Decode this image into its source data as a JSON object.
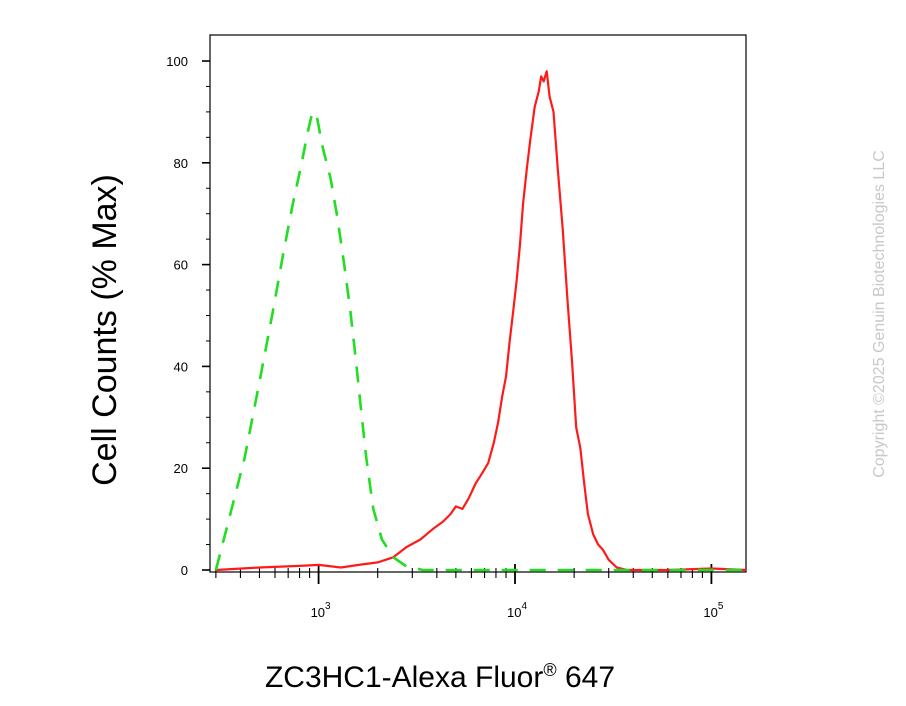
{
  "chart_data": {
    "type": "line",
    "xlabel": "ZC3HC1-Alexa Fluor",
    "xlabel_superscript": "®",
    "xlabel_suffix": " 647",
    "ylabel": "Cell Counts (% Max)",
    "x_scale": "log",
    "xlim": [
      280,
      150000
    ],
    "ylim": [
      -1,
      105
    ],
    "y_ticks": [
      "0",
      "20",
      "40",
      "60",
      "80",
      "100"
    ],
    "y_tick_values": [
      0,
      20,
      40,
      60,
      80,
      100
    ],
    "x_ticks": [
      {
        "base": "10",
        "exp": "3",
        "value": 1000
      },
      {
        "base": "10",
        "exp": "4",
        "value": 10000
      },
      {
        "base": "10",
        "exp": "5",
        "value": 100000
      }
    ],
    "series": [
      {
        "color": "#ff1a1a",
        "style": "solid",
        "x": [
          300,
          500,
          800,
          1000,
          1300,
          1600,
          2000,
          2400,
          2800,
          3300,
          3800,
          4300,
          4700,
          5000,
          5400,
          5800,
          6300,
          6800,
          7300,
          7800,
          8200,
          8600,
          9000,
          9400,
          9800,
          10200,
          10600,
          11000,
          11500,
          12000,
          12600,
          13200,
          13600,
          14000,
          14500,
          15000,
          15700,
          16500,
          17500,
          18500,
          19500,
          20500,
          21500,
          22500,
          23500,
          25000,
          26500,
          28000,
          30000,
          33000,
          37000,
          42000,
          60000,
          100000,
          150000
        ],
        "y": [
          0,
          0.5,
          0.8,
          1,
          0.5,
          1,
          1.5,
          2.5,
          4.5,
          6,
          8,
          9.5,
          11,
          12.5,
          12,
          14,
          17,
          19,
          21,
          25,
          29,
          34,
          38,
          45,
          51,
          57,
          64,
          72,
          79,
          85,
          91,
          94,
          97,
          96,
          98,
          93,
          90,
          79,
          67,
          53,
          41,
          28,
          24,
          17,
          11,
          7,
          5,
          4,
          2,
          0.5,
          0,
          0,
          0,
          0.3,
          0
        ]
      },
      {
        "color": "#22dd22",
        "style": "dashed",
        "x": [
          300,
          350,
          420,
          500,
          580,
          660,
          740,
          820,
          880,
          930,
          980,
          1050,
          1150,
          1250,
          1350,
          1450,
          1550,
          1650,
          1750,
          1900,
          2100,
          2400,
          2800,
          3400,
          4500,
          10000,
          40000,
          150000
        ],
        "y": [
          0,
          10,
          22,
          37,
          50,
          62,
          72,
          80,
          86,
          90,
          89,
          83,
          77,
          69,
          60,
          51,
          41,
          31,
          22,
          12,
          6,
          2.5,
          0.7,
          0,
          0,
          0,
          0,
          0
        ]
      }
    ],
    "copyright": "Copyright ©2025 Genuin Biotechnologies LLC"
  }
}
